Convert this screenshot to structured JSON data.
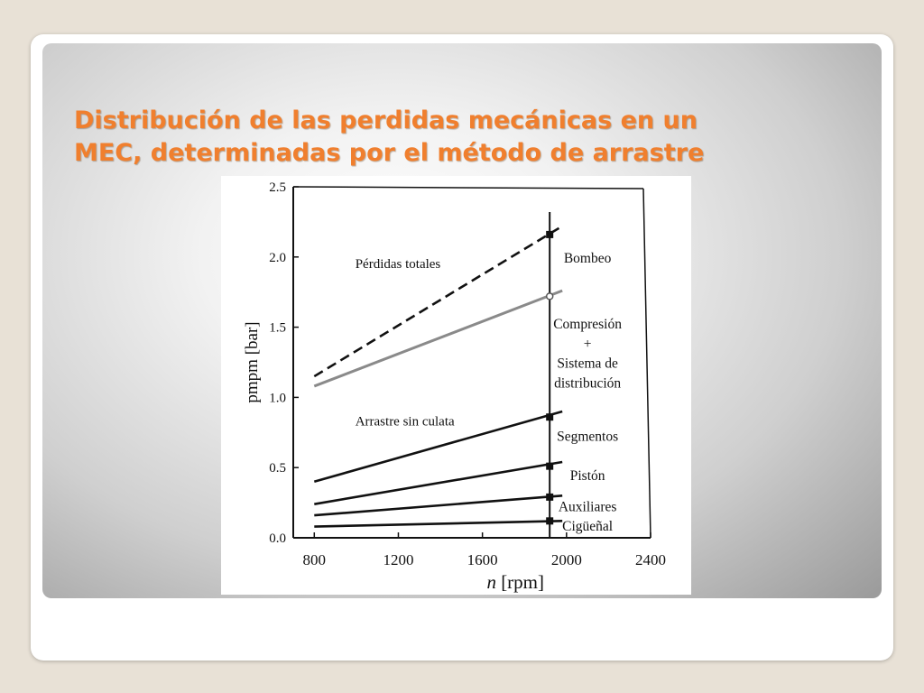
{
  "slide": {
    "title_line1": "Distribución de las perdidas mecánicas en un",
    "title_line2": "MEC, determinadas por el método de arrastre"
  },
  "colors": {
    "title": "#f07f2e",
    "line": "#111111",
    "gray_line": "#8a8a8a"
  },
  "chart_data": {
    "type": "line",
    "xlabel_prefix": "n",
    "xlabel_unit": "[rpm]",
    "ylabel": "pmpm [bar]",
    "xlim": [
      700,
      2400
    ],
    "ylim": [
      0,
      2.5
    ],
    "x_ticks": [
      800,
      1200,
      1600,
      2000,
      2400
    ],
    "y_ticks": [
      "0.0",
      "0.5",
      "1.0",
      "1.5",
      "2.0",
      "2.5"
    ],
    "grid": false,
    "marker_x": 1920,
    "series": [
      {
        "name": "Pérdidas totales",
        "style": "dashed",
        "x": [
          800,
          1980
        ],
        "y": [
          1.15,
          2.22
        ],
        "marker_y": 2.16
      },
      {
        "name": "",
        "style": "gray",
        "x": [
          800,
          1980
        ],
        "y": [
          1.08,
          1.76
        ],
        "marker_y": 1.72
      },
      {
        "name": "Arrastre sin culata",
        "style": "solid",
        "x": [
          800,
          1980
        ],
        "y": [
          0.4,
          0.9
        ],
        "marker_y": 0.86
      },
      {
        "name": "",
        "style": "solid",
        "x": [
          800,
          1980
        ],
        "y": [
          0.24,
          0.54
        ],
        "marker_y": 0.51
      },
      {
        "name": "",
        "style": "solid",
        "x": [
          800,
          1980
        ],
        "y": [
          0.16,
          0.3
        ],
        "marker_y": 0.29
      },
      {
        "name": "",
        "style": "solid",
        "x": [
          800,
          1980
        ],
        "y": [
          0.08,
          0.12
        ],
        "marker_y": 0.12
      }
    ],
    "line_labels": [
      {
        "text": "Pérdidas totales",
        "x": 995,
        "y": 1.92
      },
      {
        "text": "Arrastre sin culata",
        "x": 995,
        "y": 0.8
      }
    ],
    "region_labels": [
      {
        "text": "Bombeo",
        "x": 2100,
        "y": 1.96
      },
      {
        "text": "Compresión",
        "x": 2100,
        "y": 1.49
      },
      {
        "text": "+",
        "x": 2100,
        "y": 1.35
      },
      {
        "text": "Sistema de",
        "x": 2100,
        "y": 1.21
      },
      {
        "text": "distribución",
        "x": 2100,
        "y": 1.07
      },
      {
        "text": "Segmentos",
        "x": 2100,
        "y": 0.69
      },
      {
        "text": "Pistón",
        "x": 2100,
        "y": 0.41
      },
      {
        "text": "Auxiliares",
        "x": 2100,
        "y": 0.19
      },
      {
        "text": "Cigüeñal",
        "x": 2100,
        "y": 0.05
      }
    ]
  }
}
